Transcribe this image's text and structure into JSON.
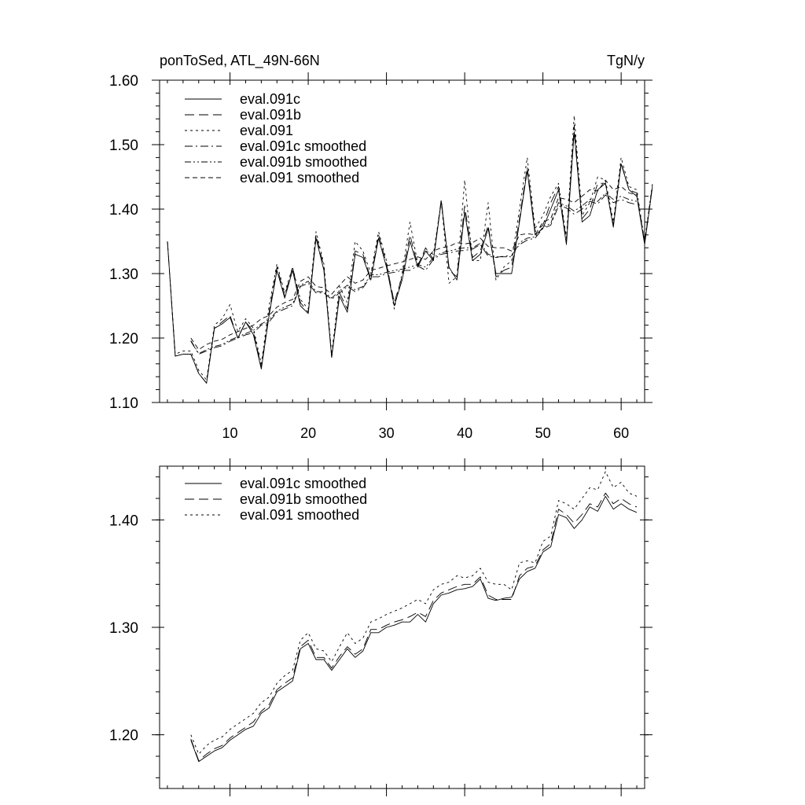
{
  "chart_data": [
    {
      "type": "line",
      "title": "ponToSed, ATL_49N-66N",
      "units": "TgN/y",
      "xlabel": "",
      "ylabel": "",
      "xlim": [
        1,
        63
      ],
      "ylim": [
        1.1,
        1.6
      ],
      "x_ticks": [
        10,
        20,
        30,
        40,
        50,
        60
      ],
      "y_ticks": [
        1.1,
        1.2,
        1.3,
        1.4,
        1.5,
        1.6
      ],
      "y_tick_labels": [
        "1.10",
        "1.20",
        "1.30",
        "1.40",
        "1.50",
        "1.60"
      ],
      "x_tick_labels": [
        "10",
        "20",
        "30",
        "40",
        "50",
        "60"
      ],
      "legend_position": "top-left",
      "series": [
        {
          "name": "eval.091c",
          "dash": "solid",
          "x_start": 2,
          "values": [
            1.35,
            1.172,
            1.175,
            1.175,
            1.145,
            1.13,
            1.215,
            1.222,
            1.232,
            1.2,
            1.225,
            1.205,
            1.152,
            1.235,
            1.305,
            1.262,
            1.305,
            1.25,
            1.238,
            1.355,
            1.305,
            1.17,
            1.265,
            1.24,
            1.33,
            1.325,
            1.29,
            1.355,
            1.31,
            1.25,
            1.29,
            1.35,
            1.31,
            1.335,
            1.32,
            1.412,
            1.31,
            1.29,
            1.395,
            1.32,
            1.33,
            1.37,
            1.3,
            1.3,
            1.3,
            1.38,
            1.46,
            1.36,
            1.37,
            1.4,
            1.43,
            1.345,
            1.52,
            1.38,
            1.39,
            1.43,
            1.44,
            1.372,
            1.47,
            1.43,
            1.42,
            1.345,
            1.435
          ]
        },
        {
          "name": "eval.091b",
          "dash": "long-dash",
          "x_start": 2,
          "values": [
            1.35,
            1.172,
            1.175,
            1.175,
            1.145,
            1.13,
            1.215,
            1.225,
            1.235,
            1.2,
            1.225,
            1.21,
            1.155,
            1.24,
            1.31,
            1.265,
            1.31,
            1.255,
            1.24,
            1.36,
            1.31,
            1.17,
            1.27,
            1.245,
            1.335,
            1.33,
            1.292,
            1.36,
            1.315,
            1.255,
            1.295,
            1.36,
            1.312,
            1.34,
            1.322,
            1.415,
            1.305,
            1.295,
            1.405,
            1.325,
            1.335,
            1.375,
            1.295,
            1.305,
            1.31,
            1.385,
            1.465,
            1.365,
            1.375,
            1.41,
            1.435,
            1.35,
            1.53,
            1.385,
            1.4,
            1.44,
            1.44,
            1.375,
            1.472,
            1.43,
            1.425,
            1.348,
            1.438
          ]
        },
        {
          "name": "eval.091",
          "dash": "dot",
          "x_start": 2,
          "values": [
            1.35,
            1.175,
            1.18,
            1.18,
            1.15,
            1.135,
            1.22,
            1.23,
            1.252,
            1.21,
            1.23,
            1.215,
            1.16,
            1.25,
            1.315,
            1.27,
            1.31,
            1.26,
            1.245,
            1.365,
            1.315,
            1.175,
            1.28,
            1.255,
            1.35,
            1.335,
            1.3,
            1.365,
            1.32,
            1.245,
            1.3,
            1.38,
            1.315,
            1.335,
            1.33,
            1.412,
            1.285,
            1.295,
            1.445,
            1.32,
            1.32,
            1.41,
            1.29,
            1.31,
            1.32,
            1.4,
            1.48,
            1.37,
            1.39,
            1.42,
            1.44,
            1.355,
            1.545,
            1.39,
            1.41,
            1.45,
            1.445,
            1.38,
            1.48,
            1.435,
            1.43,
            1.35,
            1.44
          ]
        },
        {
          "name": "eval.091c smoothed",
          "dash": "dash-dot",
          "x_start": 5,
          "values": [
            1.195,
            1.175,
            1.18,
            1.185,
            1.188,
            1.195,
            1.2,
            1.205,
            1.208,
            1.22,
            1.225,
            1.24,
            1.245,
            1.25,
            1.28,
            1.285,
            1.27,
            1.27,
            1.26,
            1.27,
            1.28,
            1.272,
            1.278,
            1.295,
            1.295,
            1.3,
            1.302,
            1.305,
            1.305,
            1.312,
            1.305,
            1.322,
            1.33,
            1.332,
            1.335,
            1.336,
            1.338,
            1.345,
            1.327,
            1.325,
            1.327,
            1.328,
            1.345,
            1.352,
            1.355,
            1.37,
            1.375,
            1.405,
            1.402,
            1.392,
            1.4,
            1.412,
            1.408,
            1.422,
            1.41,
            1.415,
            1.41,
            1.407
          ]
        },
        {
          "name": "eval.091b smoothed",
          "dash": "dash-dot-dot",
          "x_start": 5,
          "values": [
            1.196,
            1.176,
            1.182,
            1.187,
            1.19,
            1.197,
            1.202,
            1.207,
            1.212,
            1.222,
            1.228,
            1.242,
            1.248,
            1.253,
            1.282,
            1.288,
            1.272,
            1.272,
            1.262,
            1.273,
            1.282,
            1.275,
            1.28,
            1.298,
            1.298,
            1.302,
            1.305,
            1.307,
            1.31,
            1.314,
            1.31,
            1.325,
            1.332,
            1.335,
            1.338,
            1.34,
            1.34,
            1.347,
            1.33,
            1.326,
            1.326,
            1.326,
            1.348,
            1.355,
            1.357,
            1.372,
            1.378,
            1.41,
            1.405,
            1.397,
            1.405,
            1.415,
            1.412,
            1.425,
            1.415,
            1.42,
            1.415,
            1.412
          ]
        },
        {
          "name": "eval.091 smoothed",
          "dash": "short-dash",
          "x_start": 5,
          "values": [
            1.2,
            1.182,
            1.19,
            1.195,
            1.198,
            1.205,
            1.21,
            1.215,
            1.22,
            1.23,
            1.235,
            1.248,
            1.255,
            1.26,
            1.288,
            1.295,
            1.28,
            1.278,
            1.268,
            1.282,
            1.295,
            1.285,
            1.29,
            1.305,
            1.308,
            1.312,
            1.315,
            1.318,
            1.322,
            1.326,
            1.322,
            1.335,
            1.34,
            1.342,
            1.348,
            1.346,
            1.348,
            1.355,
            1.342,
            1.34,
            1.34,
            1.335,
            1.36,
            1.362,
            1.36,
            1.38,
            1.385,
            1.418,
            1.415,
            1.41,
            1.42,
            1.43,
            1.428,
            1.445,
            1.43,
            1.435,
            1.425,
            1.422
          ]
        }
      ]
    },
    {
      "type": "line",
      "title": "",
      "xlabel": "",
      "ylabel": "",
      "xlim": [
        1,
        63
      ],
      "ylim": [
        1.15,
        1.45
      ],
      "x_ticks": [
        10,
        20,
        30,
        40,
        50,
        60
      ],
      "y_ticks": [
        1.2,
        1.3,
        1.4
      ],
      "y_tick_labels": [
        "1.20",
        "1.30",
        "1.40"
      ],
      "legend_position": "top-left",
      "series": [
        {
          "name": "eval.091c smoothed",
          "dash": "solid",
          "x_start": 5,
          "values": [
            1.195,
            1.175,
            1.18,
            1.185,
            1.188,
            1.195,
            1.2,
            1.205,
            1.208,
            1.22,
            1.225,
            1.24,
            1.245,
            1.25,
            1.28,
            1.285,
            1.27,
            1.27,
            1.26,
            1.27,
            1.28,
            1.272,
            1.278,
            1.295,
            1.295,
            1.3,
            1.302,
            1.305,
            1.305,
            1.312,
            1.305,
            1.322,
            1.33,
            1.332,
            1.335,
            1.336,
            1.338,
            1.345,
            1.327,
            1.325,
            1.327,
            1.328,
            1.345,
            1.352,
            1.355,
            1.37,
            1.375,
            1.405,
            1.402,
            1.392,
            1.4,
            1.412,
            1.408,
            1.422,
            1.41,
            1.415,
            1.41,
            1.407
          ]
        },
        {
          "name": "eval.091b smoothed",
          "dash": "long-dash",
          "x_start": 5,
          "values": [
            1.196,
            1.176,
            1.182,
            1.187,
            1.19,
            1.197,
            1.202,
            1.207,
            1.212,
            1.222,
            1.228,
            1.242,
            1.248,
            1.253,
            1.282,
            1.288,
            1.272,
            1.272,
            1.262,
            1.273,
            1.282,
            1.275,
            1.28,
            1.298,
            1.298,
            1.302,
            1.305,
            1.307,
            1.31,
            1.314,
            1.31,
            1.325,
            1.332,
            1.335,
            1.338,
            1.34,
            1.34,
            1.347,
            1.33,
            1.326,
            1.326,
            1.326,
            1.348,
            1.355,
            1.357,
            1.372,
            1.378,
            1.41,
            1.405,
            1.397,
            1.405,
            1.415,
            1.412,
            1.425,
            1.415,
            1.42,
            1.415,
            1.412
          ]
        },
        {
          "name": "eval.091 smoothed",
          "dash": "dot",
          "x_start": 5,
          "values": [
            1.2,
            1.182,
            1.19,
            1.195,
            1.198,
            1.205,
            1.21,
            1.215,
            1.22,
            1.23,
            1.235,
            1.248,
            1.255,
            1.26,
            1.288,
            1.295,
            1.28,
            1.278,
            1.268,
            1.282,
            1.295,
            1.285,
            1.29,
            1.305,
            1.308,
            1.312,
            1.315,
            1.318,
            1.322,
            1.326,
            1.322,
            1.335,
            1.34,
            1.342,
            1.348,
            1.346,
            1.348,
            1.355,
            1.342,
            1.34,
            1.34,
            1.335,
            1.36,
            1.362,
            1.36,
            1.38,
            1.385,
            1.418,
            1.415,
            1.41,
            1.42,
            1.43,
            1.428,
            1.445,
            1.43,
            1.435,
            1.425,
            1.422
          ]
        }
      ]
    }
  ]
}
